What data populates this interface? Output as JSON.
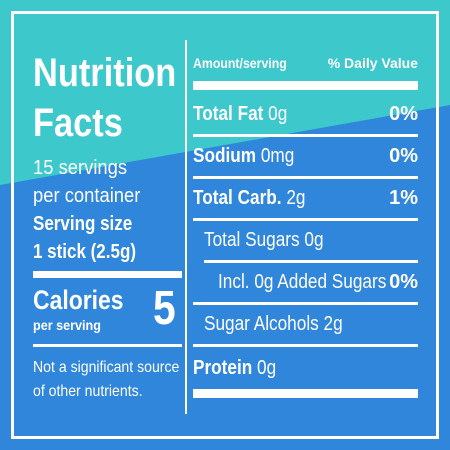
{
  "colors": {
    "teal": "#3dc8cc",
    "blue": "#2f86db",
    "text": "#ffffff"
  },
  "title": "Nutrition Facts",
  "title_line1": "Nutrition",
  "title_line2": "Facts",
  "servings_line1": "15 servings",
  "servings_line2": "per container",
  "serving_size_label": "Serving size",
  "serving_size_value": "1 stick (2.5g)",
  "calories": {
    "label": "Calories",
    "sublabel": "per serving",
    "value": "5"
  },
  "footnote_line1": "Not a significant source",
  "footnote_line2": "of other nutrients.",
  "header": {
    "amount": "Amount/serving",
    "daily_value": "% Daily Value"
  },
  "rows": [
    {
      "name": "Total Fat",
      "amount": "0g",
      "dv": "0%"
    },
    {
      "name": "Sodium",
      "amount": "0mg",
      "dv": "0%"
    },
    {
      "name": "Total Carb.",
      "amount": "2g",
      "dv": "1%"
    },
    {
      "name": "Total Sugars 0g",
      "amount": "",
      "dv": ""
    },
    {
      "name": "Incl. 0g Added Sugars",
      "amount": "",
      "dv": "0%"
    },
    {
      "name": "Sugar Alcohols 2g",
      "amount": "",
      "dv": ""
    },
    {
      "name": "Protein",
      "amount": "0g",
      "dv": ""
    }
  ]
}
